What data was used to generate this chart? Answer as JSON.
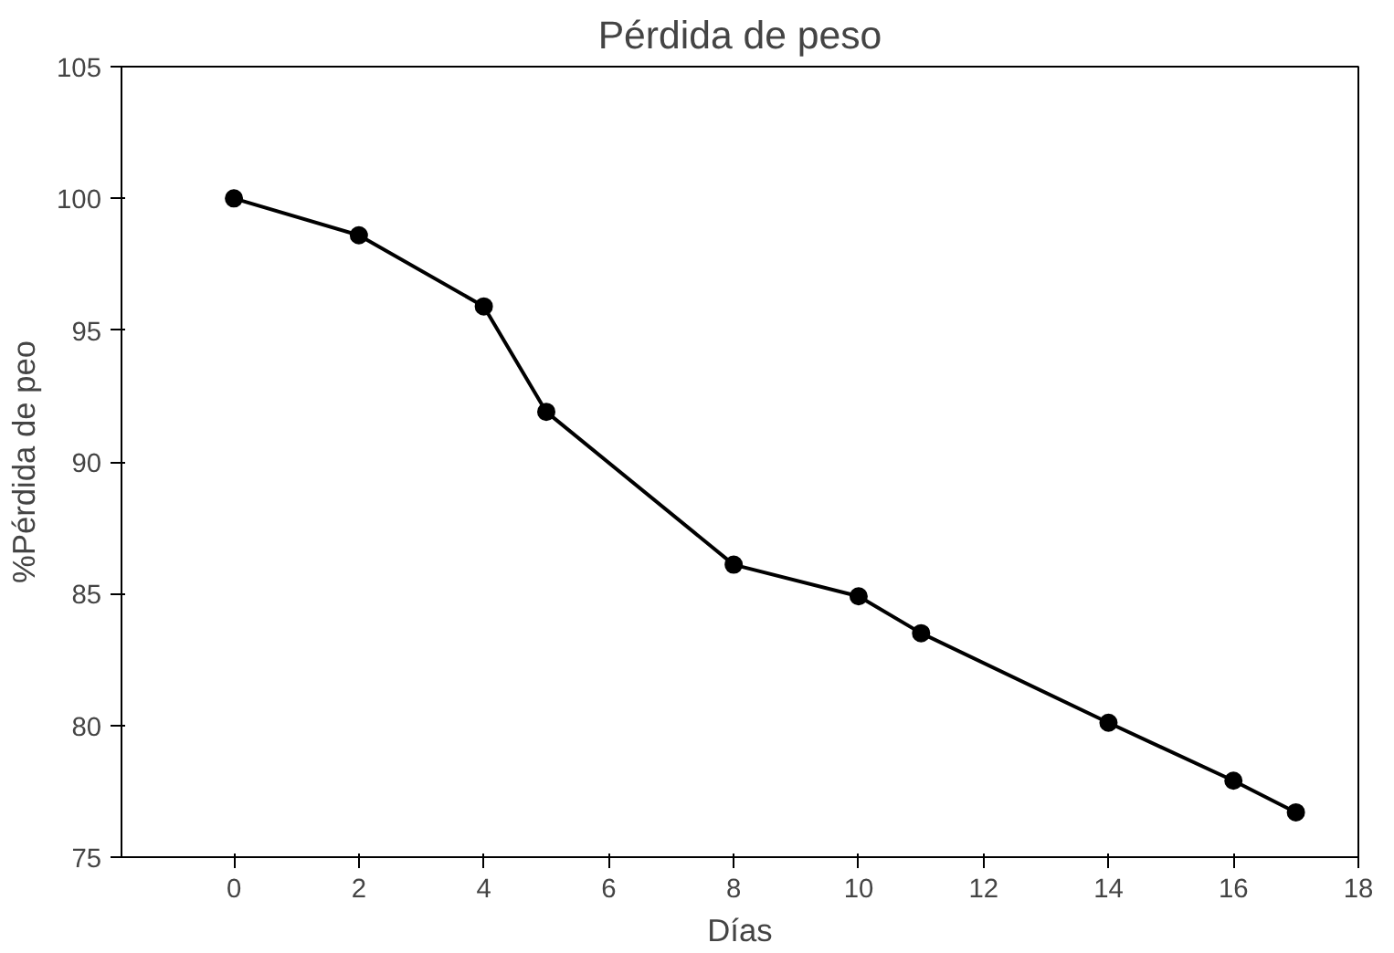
{
  "chart_data": {
    "type": "line",
    "title": "Pérdida de peso",
    "xlabel": "Días",
    "ylabel": "%Pérdida de peo",
    "x": [
      0,
      2,
      4,
      5,
      8,
      10,
      11,
      14,
      16,
      17
    ],
    "series": [
      {
        "color": "#000000",
        "values": [
          100,
          98.6,
          95.9,
          91.9,
          86.1,
          84.9,
          83.5,
          80.1,
          77.9,
          76.7
        ]
      }
    ],
    "xlim": [
      -1.8,
      18
    ],
    "xticks": [
      0,
      2,
      4,
      6,
      8,
      10,
      12,
      14,
      16,
      18
    ],
    "ylim": [
      75,
      105
    ],
    "yticks": [
      75,
      80,
      85,
      90,
      95,
      100,
      105
    ],
    "grid": false,
    "marker": "circle",
    "line_style": "solid"
  }
}
